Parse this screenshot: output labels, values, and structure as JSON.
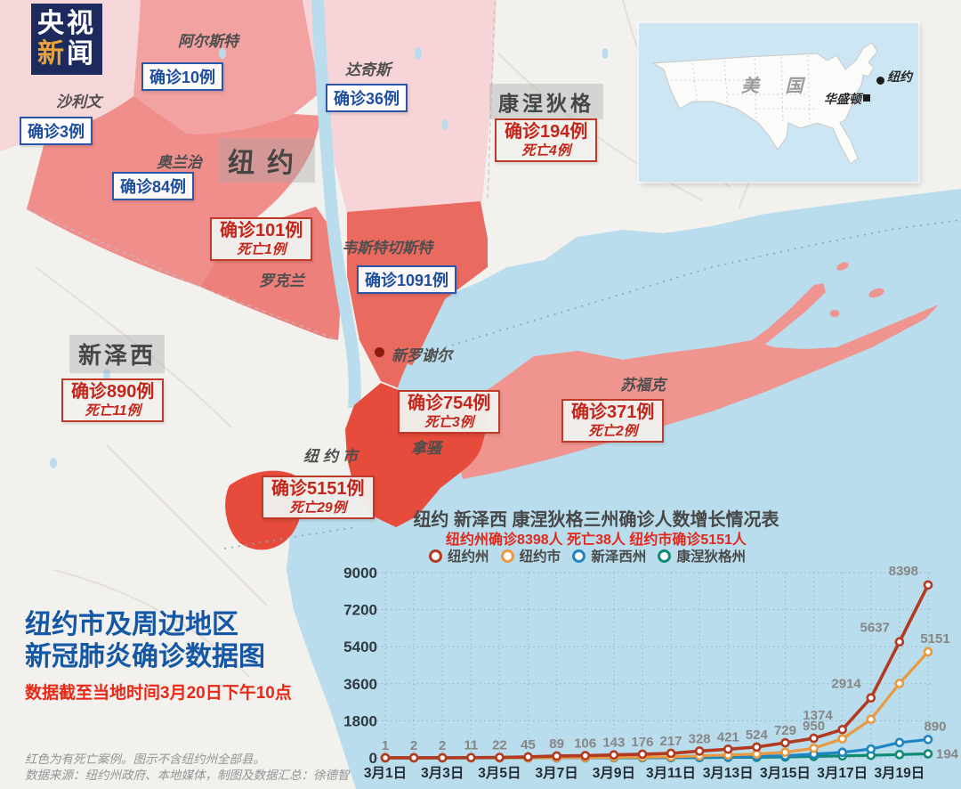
{
  "logo": {
    "row1": "央视",
    "row2_first": "新",
    "row2_second": "闻"
  },
  "map": {
    "regions": {
      "sullivan": {
        "name": "沙利文",
        "cases": "确诊3例"
      },
      "ulster": {
        "name": "阿尔斯特",
        "cases": "确诊10例"
      },
      "dutchess": {
        "name": "达奇斯",
        "cases": "确诊36例"
      },
      "orange": {
        "name": "奥兰治",
        "cases": "确诊84例"
      },
      "rockland": {
        "name": "罗克兰",
        "cases": "确诊101例",
        "deaths": "死亡1例"
      },
      "westchester": {
        "name": "韦斯特切斯特",
        "cases": "确诊1091例"
      },
      "nassau": {
        "name": "拿骚",
        "cases": "确诊754例",
        "deaths": "死亡3例"
      },
      "suffolk": {
        "name": "苏福克",
        "cases": "确诊371例",
        "deaths": "死亡2例"
      },
      "nyc": {
        "name": "纽约市",
        "cases": "确诊5151例",
        "deaths": "死亡29例"
      },
      "new_rochelle": {
        "name": "新罗谢尔"
      }
    },
    "states": {
      "new_york": {
        "name": "纽约"
      },
      "new_jersey": {
        "name": "新泽西",
        "cases": "确诊890例",
        "deaths": "死亡11例"
      },
      "connecticut": {
        "name": "康涅狄格",
        "cases": "确诊194例",
        "deaths": "死亡4例"
      }
    }
  },
  "inset": {
    "country_label": "美 国",
    "new_york": "纽约",
    "washington": "华盛顿"
  },
  "title_block": {
    "line1": "纽约市及周边地区",
    "line2": "新冠肺炎确诊数据图",
    "note": "数据截至当地时间3月20日下午10点"
  },
  "footnote": {
    "line1": "红色为有死亡案例。图示不含纽约州全部县。",
    "line2": "数据来源：纽约州政府、本地媒体，制图及数据汇总：徐德智"
  },
  "chart_data": {
    "type": "line",
    "title": "纽约 新泽西 康涅狄格三州确诊人数增长情况表",
    "subtitle": "纽约州确诊8398人 死亡38人 纽约市确诊5151人",
    "x_tick_labels": [
      "3月1日",
      "3月3日",
      "3月5日",
      "3月7日",
      "3月9日",
      "3月11日",
      "3月13日",
      "3月15日",
      "3月17日",
      "3月19日"
    ],
    "n_points": 20,
    "y_ticks": [
      0,
      1800,
      3600,
      5400,
      7200,
      9000
    ],
    "ylim": [
      0,
      9000
    ],
    "grid": true,
    "legend_position": "top",
    "series": [
      {
        "name": "纽约州",
        "color": "#b13a20",
        "values": [
          1,
          2,
          2,
          11,
          22,
          45,
          89,
          106,
          143,
          176,
          217,
          328,
          421,
          524,
          729,
          950,
          1374,
          2914,
          5637,
          8398
        ],
        "point_labels_visible": true,
        "end_label": "8398"
      },
      {
        "name": "纽约市",
        "color": "#e9993f",
        "values": [
          1,
          1,
          1,
          1,
          2,
          4,
          12,
          14,
          25,
          36,
          52,
          95,
          137,
          184,
          269,
          464,
          923,
          1871,
          3615,
          5151
        ],
        "end_label": "5151"
      },
      {
        "name": "新泽西州",
        "color": "#1f85c2",
        "values": [
          0,
          0,
          0,
          1,
          2,
          2,
          4,
          6,
          11,
          15,
          23,
          29,
          50,
          69,
          98,
          178,
          267,
          427,
          742,
          890
        ],
        "end_label": "890"
      },
      {
        "name": "康涅狄格州",
        "color": "#0f8a74",
        "values": [
          0,
          0,
          0,
          0,
          0,
          1,
          2,
          4,
          5,
          6,
          9,
          11,
          24,
          26,
          41,
          68,
          96,
          122,
          159,
          194
        ],
        "end_label": "194"
      }
    ]
  }
}
